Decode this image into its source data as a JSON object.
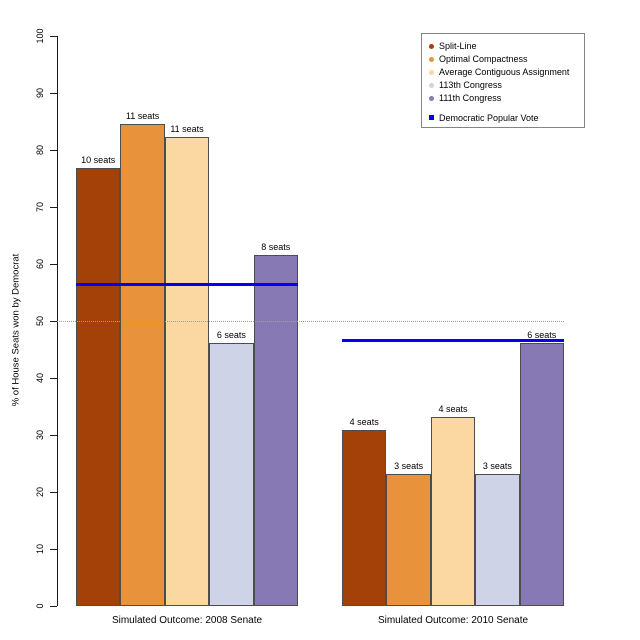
{
  "chart_data": {
    "type": "bar",
    "title": "",
    "ylabel": "% of House Seats won by Democrat",
    "ylim": [
      0,
      100
    ],
    "yticks": [
      0,
      10,
      20,
      30,
      40,
      50,
      60,
      70,
      80,
      90,
      100
    ],
    "grid": false,
    "reference_line": {
      "value": 50,
      "style": "dotted"
    },
    "series_names": [
      "Split-Line",
      "Optimal Compactness",
      "Average Contiguous Assignment",
      "113th Congress",
      "111th Congress"
    ],
    "groups": [
      {
        "label": "Simulated Outcome: 2008 Senate",
        "popular_vote": 56.4,
        "bars": [
          {
            "series": "Split-Line",
            "value": 76.9,
            "annotation": "10 seats"
          },
          {
            "series": "Optimal Compactness",
            "value": 84.6,
            "annotation": "11 seats"
          },
          {
            "series": "Average Contiguous Assignment",
            "value": 82.3,
            "annotation": "11 seats"
          },
          {
            "series": "113th Congress",
            "value": 46.2,
            "annotation": "6 seats"
          },
          {
            "series": "111th Congress",
            "value": 61.5,
            "annotation": "8 seats"
          }
        ]
      },
      {
        "label": "Simulated Outcome: 2010 Senate",
        "popular_vote": 46.6,
        "bars": [
          {
            "series": "Split-Line",
            "value": 30.8,
            "annotation": "4 seats"
          },
          {
            "series": "Optimal Compactness",
            "value": 23.1,
            "annotation": "3 seats"
          },
          {
            "series": "Average Contiguous Assignment",
            "value": 33.2,
            "annotation": "4 seats"
          },
          {
            "series": "113th Congress",
            "value": 23.1,
            "annotation": "3 seats"
          },
          {
            "series": "111th Congress",
            "value": 46.2,
            "annotation": "6 seats"
          }
        ]
      }
    ],
    "legend": {
      "position": "top-right",
      "items": [
        {
          "label": "Split-Line",
          "marker": "circle",
          "color": "#A34109"
        },
        {
          "label": "Optimal Compactness",
          "marker": "circle",
          "color": "#E8923C"
        },
        {
          "label": "Average Contiguous Assignment",
          "marker": "circle",
          "color": "#FBD7A2"
        },
        {
          "label": "113th Congress",
          "marker": "circle",
          "color": "#CFD3E7"
        },
        {
          "label": "111th Congress",
          "marker": "circle",
          "color": "#8679B4"
        }
      ],
      "line_item": {
        "label": "Democratic Popular Vote",
        "marker": "square",
        "color": "#0000F0"
      }
    },
    "colors": {
      "popular_vote_line": "#0000F0",
      "bar_border": "#4d4d4d",
      "reference_line": "#9e9e9e",
      "axis": "#1a1a1a"
    }
  }
}
